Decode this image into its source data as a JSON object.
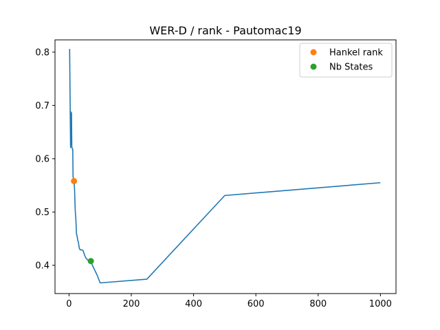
{
  "chart_data": {
    "type": "line",
    "title": "WER-D / rank - Pautomac19",
    "xlabel": "",
    "ylabel": "",
    "xlim": [
      -45,
      1050
    ],
    "ylim": [
      0.347,
      0.823
    ],
    "x_ticks": [
      0,
      200,
      400,
      600,
      800,
      1000
    ],
    "y_ticks": [
      0.4,
      0.5,
      0.6,
      0.7,
      0.8
    ],
    "x_tick_labels": [
      "0",
      "200",
      "400",
      "600",
      "800",
      "1000"
    ],
    "y_tick_labels": [
      "0.4",
      "0.5",
      "0.6",
      "0.7",
      "0.8"
    ],
    "grid": false,
    "legend_position": "upper right",
    "series": [
      {
        "color": "#1f77b4",
        "style": "line",
        "x": [
          2,
          3,
          4,
          5,
          6,
          7,
          8,
          9,
          10,
          11,
          12,
          13,
          14,
          15,
          16,
          17,
          18,
          19,
          20,
          22,
          24,
          26,
          28,
          30,
          33,
          36,
          40,
          45,
          50,
          55,
          60,
          66,
          70,
          80,
          90,
          100,
          250,
          500,
          1000
        ],
        "y": [
          0.806,
          0.742,
          0.679,
          0.621,
          0.688,
          0.627,
          0.686,
          0.622,
          0.62,
          0.618,
          0.618,
          0.566,
          0.564,
          0.56,
          0.558,
          0.551,
          0.54,
          0.519,
          0.503,
          0.486,
          0.459,
          0.455,
          0.447,
          0.444,
          0.432,
          0.429,
          0.429,
          0.428,
          0.419,
          0.413,
          0.41,
          0.409,
          0.407,
          0.394,
          0.382,
          0.367,
          0.374,
          0.531,
          0.555
        ]
      },
      {
        "name": "Hankel rank",
        "color": "#ff7f0e",
        "style": "marker",
        "x": [
          16
        ],
        "y": [
          0.558
        ]
      },
      {
        "name": "Nb States",
        "color": "#2ca02c",
        "style": "marker",
        "x": [
          70
        ],
        "y": [
          0.408
        ]
      }
    ]
  }
}
